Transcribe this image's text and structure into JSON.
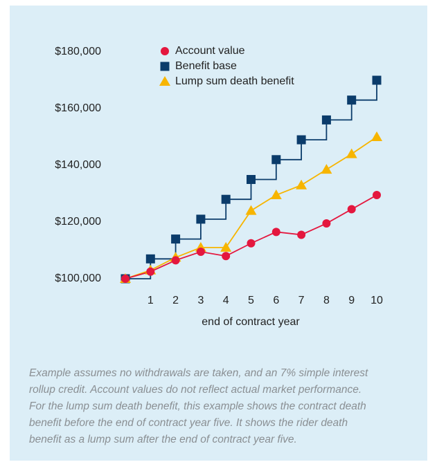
{
  "chart_data": {
    "type": "line",
    "x_label": "end of contract year",
    "x": [
      0,
      1,
      2,
      3,
      4,
      5,
      6,
      7,
      8,
      9,
      10
    ],
    "xlim": [
      0,
      10
    ],
    "xticks": [
      1,
      2,
      3,
      4,
      5,
      6,
      7,
      8,
      9,
      10
    ],
    "ylim": [
      100000,
      180000
    ],
    "yticks": [
      {
        "value": 100000,
        "label": "$100,000"
      },
      {
        "value": 120000,
        "label": "$120,000"
      },
      {
        "value": 140000,
        "label": "$140,000"
      },
      {
        "value": 160000,
        "label": "$160,000"
      },
      {
        "value": 180000,
        "label": "$180,000"
      }
    ],
    "grid": false,
    "legend": "top",
    "series": [
      {
        "name": "Account value",
        "color": "#e4173e",
        "marker": "circle",
        "step": false,
        "values": [
          100000,
          102500,
          106500,
          109500,
          108000,
          112500,
          116500,
          115500,
          119500,
          124500,
          129500
        ]
      },
      {
        "name": "Benefit base",
        "color": "#0b3c6b",
        "marker": "square",
        "step": true,
        "values": [
          100000,
          107000,
          114000,
          121000,
          128000,
          135000,
          142000,
          149000,
          156000,
          163000,
          170000
        ]
      },
      {
        "name": "Lump sum death benefit",
        "color": "#f7b500",
        "marker": "triangle",
        "step": false,
        "values": [
          100000,
          103000,
          107500,
          111000,
          111000,
          124000,
          129500,
          133000,
          138500,
          144000,
          150000
        ]
      }
    ]
  },
  "caption_lines": [
    "Example assumes no withdrawals are taken, and an 7% simple interest",
    "rollup credit. Account values do not reflect actual market performance.",
    "For the lump sum death benefit, this example shows the contract death",
    "benefit before the end of contract year five. It shows the rider death",
    "benefit as a lump sum after the end of contract year five."
  ]
}
